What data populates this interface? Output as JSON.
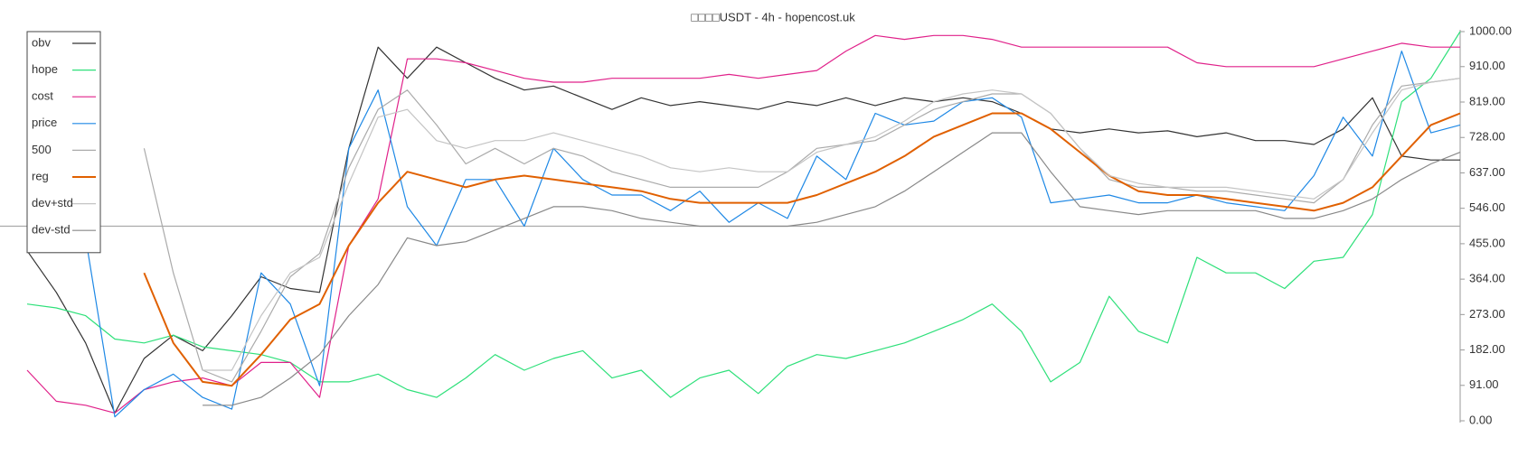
{
  "chart_data": {
    "type": "line",
    "title": "□□□□USDT - 4h - hopencost.uk",
    "ylim": [
      0,
      1000
    ],
    "yticks": [
      {
        "value": 0,
        "label": "0.00"
      },
      {
        "value": 91,
        "label": "91.00"
      },
      {
        "value": 182,
        "label": "182.00"
      },
      {
        "value": 273,
        "label": "273.00"
      },
      {
        "value": 364,
        "label": "364.00"
      },
      {
        "value": 455,
        "label": "455.00"
      },
      {
        "value": 546,
        "label": "546.00"
      },
      {
        "value": 637,
        "label": "637.00"
      },
      {
        "value": 728,
        "label": "728.00"
      },
      {
        "value": 819,
        "label": "819.00"
      },
      {
        "value": 910,
        "label": "910.00"
      },
      {
        "value": 1000,
        "label": "1000.00"
      }
    ],
    "hline": 500,
    "legend": "top-left",
    "series": [
      {
        "name": "obv",
        "color": "#333333",
        "values": [
          437,
          330,
          200,
          20,
          160,
          220,
          180,
          270,
          370,
          340,
          330,
          700,
          960,
          880,
          960,
          920,
          880,
          850,
          860,
          830,
          800,
          830,
          810,
          820,
          810,
          800,
          820,
          810,
          830,
          810,
          830,
          820,
          830,
          820,
          790,
          750,
          740,
          750,
          740,
          745,
          730,
          740,
          720,
          720,
          710,
          750,
          830,
          680,
          670,
          670
        ]
      },
      {
        "name": "hope",
        "color": "#2ee07a",
        "values": [
          300,
          290,
          270,
          210,
          200,
          220,
          190,
          180,
          170,
          150,
          100,
          100,
          120,
          80,
          60,
          110,
          170,
          130,
          160,
          180,
          110,
          130,
          60,
          110,
          130,
          70,
          140,
          170,
          160,
          180,
          200,
          230,
          260,
          300,
          230,
          100,
          150,
          320,
          230,
          200,
          420,
          380,
          380,
          340,
          410,
          420,
          530,
          820,
          880,
          1000
        ]
      },
      {
        "name": "cost",
        "color": "#e0218a",
        "values": [
          130,
          50,
          40,
          20,
          80,
          100,
          110,
          90,
          150,
          150,
          60,
          450,
          570,
          930,
          930,
          920,
          900,
          880,
          870,
          870,
          880,
          880,
          880,
          880,
          890,
          880,
          890,
          900,
          950,
          990,
          980,
          990,
          990,
          980,
          960,
          960,
          960,
          960,
          960,
          960,
          920,
          910,
          910,
          910,
          910,
          930,
          950,
          970,
          960,
          960
        ]
      },
      {
        "name": "price",
        "color": "#1e88e5",
        "values": [
          null,
          null,
          470,
          10,
          80,
          120,
          60,
          30,
          380,
          300,
          90,
          700,
          850,
          550,
          450,
          620,
          620,
          500,
          700,
          620,
          580,
          580,
          540,
          590,
          510,
          560,
          520,
          680,
          620,
          790,
          760,
          770,
          820,
          830,
          780,
          560,
          570,
          580,
          560,
          560,
          580,
          560,
          550,
          540,
          630,
          780,
          680,
          950,
          740,
          760
        ]
      },
      {
        "name": "500",
        "color": "#aaaaaa",
        "values": [
          null,
          null,
          null,
          null,
          700,
          380,
          130,
          100,
          230,
          370,
          430,
          650,
          800,
          850,
          760,
          660,
          700,
          660,
          700,
          680,
          640,
          620,
          600,
          600,
          600,
          600,
          640,
          700,
          710,
          720,
          760,
          800,
          820,
          840,
          840,
          790,
          700,
          620,
          600,
          600,
          590,
          590,
          580,
          570,
          560,
          620,
          760,
          860,
          870,
          880
        ]
      },
      {
        "name": "reg",
        "color": "#e06000",
        "line_width": 2,
        "values": [
          null,
          null,
          null,
          null,
          380,
          200,
          100,
          90,
          170,
          260,
          300,
          450,
          560,
          640,
          620,
          600,
          620,
          630,
          620,
          610,
          600,
          590,
          570,
          560,
          560,
          560,
          560,
          580,
          610,
          640,
          680,
          730,
          760,
          790,
          790,
          750,
          690,
          630,
          590,
          580,
          580,
          570,
          560,
          550,
          540,
          560,
          600,
          680,
          760,
          790
        ]
      },
      {
        "name": "dev+std",
        "color": "#c4c4c4",
        "values": [
          null,
          null,
          null,
          null,
          null,
          null,
          130,
          130,
          270,
          380,
          420,
          610,
          780,
          800,
          720,
          700,
          720,
          720,
          740,
          720,
          700,
          680,
          650,
          640,
          650,
          640,
          640,
          690,
          710,
          730,
          770,
          820,
          840,
          850,
          840,
          790,
          700,
          630,
          610,
          600,
          600,
          600,
          590,
          580,
          570,
          620,
          740,
          850,
          870,
          880
        ]
      },
      {
        "name": "dev-std",
        "color": "#888888",
        "values": [
          null,
          null,
          null,
          null,
          null,
          null,
          40,
          40,
          60,
          110,
          170,
          270,
          350,
          470,
          450,
          460,
          490,
          520,
          550,
          550,
          540,
          520,
          510,
          500,
          500,
          500,
          500,
          510,
          530,
          550,
          590,
          640,
          690,
          740,
          740,
          640,
          550,
          540,
          530,
          540,
          540,
          540,
          540,
          520,
          520,
          540,
          570,
          620,
          660,
          690
        ]
      }
    ]
  }
}
